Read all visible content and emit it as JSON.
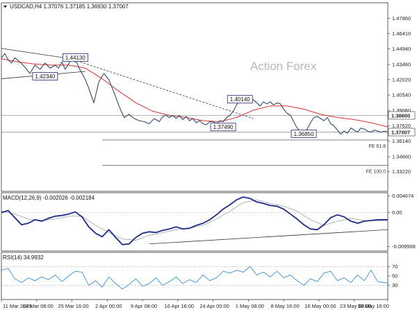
{
  "chart_data": [
    {
      "type": "line",
      "panel": "price",
      "title": "USDCAD,H4  1.37076 1.37185 1.36930 1.37007",
      "watermark": "Action Forex",
      "ylim": [
        1.3135,
        1.4935
      ],
      "y_ticks": [
        "1.47860",
        "1.46410",
        "1.44940",
        "1.43460",
        "1.42020",
        "1.40540",
        "1.39060",
        "1.37620",
        "1.36140",
        "1.34660",
        "1.33220"
      ],
      "y_tick_values": [
        1.4786,
        1.4641,
        1.4494,
        1.4346,
        1.4202,
        1.4054,
        1.3906,
        1.3762,
        1.3614,
        1.3466,
        1.3322
      ],
      "x_ticks": [
        "11 Mar 2025",
        "18 Mar 08:00",
        "25 Mar 16:00",
        "2 Apr 00:00",
        "9 Apr 08:00",
        "16 Apr 16:00",
        "24 Apr 00:00",
        "1 May 08:00",
        "8 May 16:00",
        "16 May 00:00",
        "23 May 08:00",
        "30 May 16:00"
      ],
      "series": [
        {
          "name": "",
          "color": "#2e4a6b",
          "x": [
            0,
            2,
            4,
            6,
            8,
            11,
            14,
            17,
            20,
            23,
            26,
            29,
            32,
            34,
            36,
            38,
            40,
            42,
            44,
            45,
            46,
            48,
            50,
            52,
            55,
            58,
            61,
            64,
            67,
            70,
            73,
            76,
            79,
            82,
            85,
            88,
            91,
            94,
            96,
            98,
            100,
            102,
            104,
            106,
            108,
            110,
            112,
            114,
            116,
            118,
            120,
            122,
            124,
            126,
            128,
            130,
            132,
            134,
            136,
            138,
            140,
            142,
            144,
            146,
            148,
            150,
            152,
            154,
            156,
            158,
            160,
            162,
            164,
            166,
            168,
            170,
            172,
            174,
            176,
            178,
            180,
            182,
            184,
            186,
            188,
            190,
            192,
            194,
            196,
            198,
            200,
            202,
            204,
            206,
            208,
            210,
            212,
            214,
            216,
            218,
            220,
            222,
            224,
            226,
            228,
            230
          ],
          "values": [
            1.441,
            1.445,
            1.439,
            1.436,
            1.441,
            1.437,
            1.432,
            1.426,
            1.434,
            1.43,
            1.436,
            1.431,
            1.434,
            1.431,
            1.437,
            1.43,
            1.435,
            1.441,
            1.437,
            1.436,
            1.432,
            1.426,
            1.42,
            1.412,
            1.398,
            1.418,
            1.426,
            1.42,
            1.408,
            1.395,
            1.384,
            1.387,
            1.383,
            1.381,
            1.38,
            1.378,
            1.383,
            1.38,
            1.385,
            1.386,
            1.384,
            1.386,
            1.383,
            1.386,
            1.382,
            1.385,
            1.381,
            1.383,
            1.379,
            1.381,
            1.378,
            1.377,
            1.38,
            1.38,
            1.378,
            1.381,
            1.38,
            1.384,
            1.386,
            1.39,
            1.396,
            1.401,
            1.403,
            1.398,
            1.4,
            1.401,
            1.398,
            1.395,
            1.399,
            1.397,
            1.399,
            1.396,
            1.398,
            1.397,
            1.392,
            1.388,
            1.386,
            1.38,
            1.374,
            1.371,
            1.369,
            1.373,
            1.379,
            1.384,
            1.385,
            1.383,
            1.381,
            1.384,
            1.378,
            1.376,
            1.372,
            1.368,
            1.371,
            1.369,
            1.374,
            1.372,
            1.37,
            1.374,
            1.373,
            1.371,
            1.37,
            1.372,
            1.371,
            1.37,
            1.371,
            1.37
          ]
        },
        {
          "name": "",
          "color": "#e03030",
          "x": [
            0,
            10,
            20,
            30,
            40,
            50,
            60,
            70,
            80,
            90,
            100,
            110,
            120,
            130,
            140,
            150,
            160,
            170,
            180,
            190,
            200,
            210,
            220,
            230
          ],
          "values": [
            1.44,
            1.437,
            1.435,
            1.434,
            1.434,
            1.431,
            1.421,
            1.409,
            1.398,
            1.39,
            1.386,
            1.384,
            1.381,
            1.38,
            1.384,
            1.391,
            1.395,
            1.395,
            1.392,
            1.387,
            1.384,
            1.382,
            1.379,
            1.375
          ]
        }
      ],
      "levels": [
        {
          "label": "1.38600",
          "value": 1.386,
          "color": "#aaaaaa"
        },
        {
          "label": "1.37007",
          "value": 1.37007,
          "color": "#888888"
        }
      ],
      "fe_levels": [
        {
          "label": "FE 61.8",
          "value": 1.3625
        },
        {
          "label": "FE 100.0",
          "value": 1.3382
        }
      ],
      "price_labels": [
        {
          "label": "1.44130",
          "x": 44,
          "value": 1.4413
        },
        {
          "label": "1.42340",
          "x": 26,
          "value": 1.4234
        },
        {
          "label": "1.37490",
          "x": 132,
          "value": 1.3749
        },
        {
          "label": "1.40140",
          "x": 142,
          "value": 1.4014
        },
        {
          "label": "1.36850",
          "x": 180,
          "value": 1.3685
        }
      ],
      "trendlines": [
        {
          "from": [
            0,
            1.45
          ],
          "to": [
            50,
            1.438
          ],
          "style": "solid"
        },
        {
          "from": [
            0,
            1.421
          ],
          "to": [
            50,
            1.428
          ],
          "style": "solid"
        },
        {
          "from": [
            45,
            1.438
          ],
          "to": [
            150,
            1.383
          ],
          "style": "dashed"
        }
      ]
    },
    {
      "type": "line",
      "panel": "macd",
      "title": "MACD(12,26,9) -0.002026 -0.002184",
      "ylim": [
        -0.0108,
        0.0056
      ],
      "y_ticks": [
        "0.004674",
        "0.00",
        "-0.009568"
      ],
      "y_tick_values": [
        0.004674,
        0.0,
        -0.009568
      ],
      "series": [
        {
          "name": "",
          "color": "#1a2a8c",
          "x": [
            0,
            4,
            8,
            12,
            16,
            20,
            24,
            28,
            32,
            36,
            40,
            44,
            48,
            52,
            56,
            60,
            64,
            68,
            72,
            76,
            80,
            84,
            88,
            92,
            96,
            100,
            104,
            108,
            112,
            116,
            120,
            124,
            128,
            132,
            136,
            140,
            144,
            148,
            152,
            156,
            160,
            164,
            168,
            172,
            176,
            180,
            184,
            188,
            192,
            196,
            200,
            204,
            208,
            212,
            216,
            220,
            224,
            228,
            230
          ],
          "values": [
            0.0,
            0.0006,
            -0.0014,
            -0.0034,
            -0.003,
            -0.002,
            -0.0024,
            -0.0016,
            -0.001,
            -0.0008,
            -0.0004,
            0.0002,
            -0.0012,
            -0.004,
            -0.0058,
            -0.0068,
            -0.0048,
            -0.007,
            -0.009,
            -0.0088,
            -0.007,
            -0.0058,
            -0.0054,
            -0.0056,
            -0.005,
            -0.0046,
            -0.004,
            -0.0046,
            -0.0044,
            -0.0036,
            -0.003,
            -0.002,
            -0.0006,
            0.001,
            0.0022,
            0.0036,
            0.0044,
            0.004,
            0.003,
            0.0026,
            0.002,
            0.0018,
            0.001,
            -0.0004,
            -0.0018,
            -0.0034,
            -0.0046,
            -0.0048,
            -0.0034,
            -0.0014,
            -0.0006,
            -0.0012,
            -0.0024,
            -0.003,
            -0.0024,
            -0.0022,
            -0.002,
            -0.002,
            -0.002
          ]
        },
        {
          "name": "",
          "color": "#aaaaaa",
          "x": [
            0,
            8,
            16,
            24,
            32,
            40,
            48,
            56,
            64,
            72,
            80,
            88,
            96,
            104,
            112,
            120,
            128,
            136,
            144,
            152,
            160,
            168,
            176,
            184,
            192,
            200,
            208,
            216,
            224,
            230
          ],
          "values": [
            0.0004,
            -0.0004,
            -0.0018,
            -0.0022,
            -0.0018,
            -0.001,
            -0.001,
            -0.0036,
            -0.0056,
            -0.0074,
            -0.0078,
            -0.0064,
            -0.0056,
            -0.0048,
            -0.0044,
            -0.0036,
            -0.0018,
            0.0004,
            0.0028,
            0.0036,
            0.0026,
            0.0018,
            0.0004,
            -0.002,
            -0.0036,
            -0.0024,
            -0.0016,
            -0.0022,
            -0.0023,
            -0.0022
          ]
        }
      ],
      "trendlines": [
        {
          "from": [
            88,
            -0.0088
          ],
          "to": [
            230,
            -0.0048
          ],
          "style": "solid"
        }
      ]
    },
    {
      "type": "line",
      "panel": "rsi",
      "title": "RSI(14) 34.9932",
      "ylim": [
        0,
        100
      ],
      "y_ticks": [
        "70",
        "50",
        "30"
      ],
      "y_tick_values": [
        70,
        50,
        30
      ],
      "series": [
        {
          "name": "",
          "color": "#3a8fe0",
          "x": [
            0,
            4,
            8,
            12,
            16,
            20,
            24,
            28,
            32,
            36,
            40,
            44,
            48,
            52,
            56,
            60,
            64,
            68,
            72,
            76,
            80,
            84,
            88,
            92,
            96,
            100,
            104,
            108,
            112,
            116,
            120,
            124,
            128,
            132,
            136,
            140,
            144,
            148,
            152,
            156,
            160,
            164,
            168,
            172,
            176,
            180,
            184,
            188,
            192,
            196,
            200,
            204,
            208,
            212,
            216,
            220,
            224,
            228,
            230
          ],
          "values": [
            62,
            66,
            44,
            36,
            46,
            40,
            48,
            42,
            52,
            38,
            50,
            60,
            58,
            30,
            40,
            26,
            48,
            34,
            22,
            32,
            44,
            28,
            34,
            46,
            30,
            38,
            48,
            34,
            42,
            36,
            52,
            40,
            46,
            60,
            56,
            62,
            58,
            70,
            52,
            58,
            48,
            60,
            46,
            52,
            40,
            30,
            44,
            38,
            56,
            60,
            40,
            46,
            36,
            52,
            40,
            62,
            38,
            36,
            35
          ]
        }
      ]
    }
  ]
}
